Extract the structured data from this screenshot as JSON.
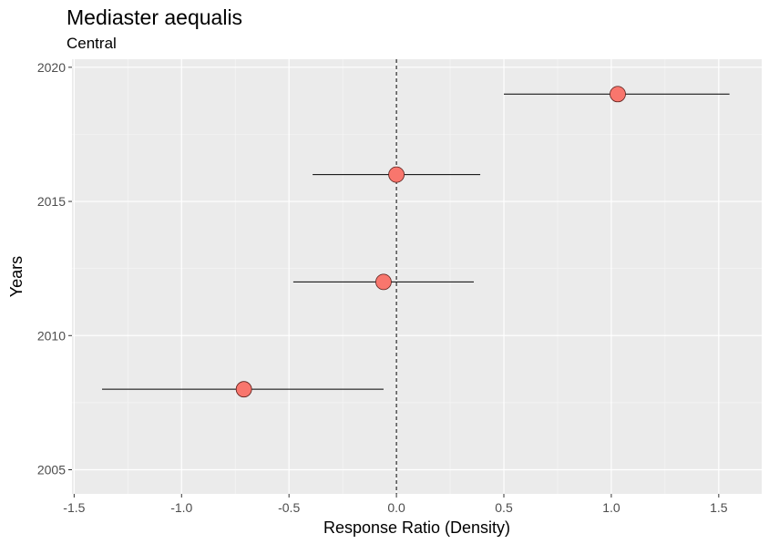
{
  "chart_data": {
    "type": "scatter",
    "title": "Mediaster aequalis",
    "subtitle": "Central",
    "xlabel": "Response Ratio (Density)",
    "ylabel": "Years",
    "xlim": [
      -1.51,
      1.7
    ],
    "ylim": [
      2004.1,
      2020.3
    ],
    "x_ticks": [
      -1.5,
      -1.0,
      -0.5,
      0.0,
      0.5,
      1.0,
      1.5
    ],
    "x_tick_labels": [
      "-1.5",
      "-1.0",
      "-0.5",
      "0.0",
      "0.5",
      "1.0",
      "1.5"
    ],
    "y_ticks": [
      2005,
      2010,
      2015,
      2020
    ],
    "y_tick_labels": [
      "2005",
      "2010",
      "2015",
      "2020"
    ],
    "grid": true,
    "reference_line_x": 0,
    "point_color": "#F8766D",
    "points": [
      {
        "year": 2019,
        "estimate": 1.03,
        "lower": 0.5,
        "upper": 1.55
      },
      {
        "year": 2016,
        "estimate": 0.0,
        "lower": -0.39,
        "upper": 0.39
      },
      {
        "year": 2012,
        "estimate": -0.06,
        "lower": -0.48,
        "upper": 0.36
      },
      {
        "year": 2008,
        "estimate": -0.71,
        "lower": -1.37,
        "upper": -0.06
      }
    ]
  }
}
